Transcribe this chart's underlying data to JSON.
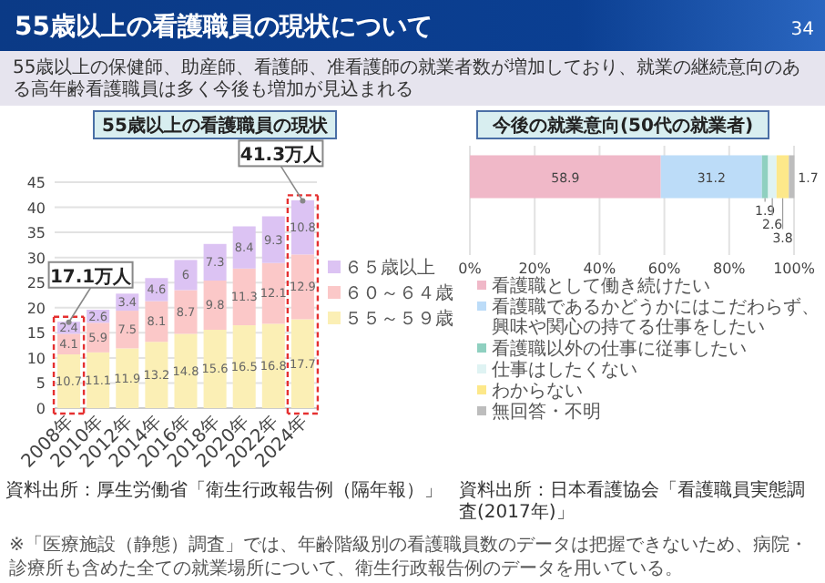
{
  "chart_data": [
    {
      "type": "other",
      "title": "55歳以上の看護職員の現状について",
      "subtitle": "55歳以上の保健師、助産師、看護師、准看護師の就業者数が増加しており、就業の継続意向のある高年齢看護職員は多く今後も増加が見込まれる",
      "annotations": [
        "34"
      ]
    },
    {
      "type": "bar",
      "title": "55歳以上の看護職員の現状",
      "categories": [
        "2008年",
        "2010年",
        "2012年",
        "2014年",
        "2016年",
        "2018年",
        "2020年",
        "2022年",
        "2024年"
      ],
      "stacked": true,
      "ylim": [
        0,
        45
      ],
      "yticks": [
        0,
        5,
        10,
        15,
        20,
        25,
        30,
        35,
        40,
        45
      ],
      "grid": "y",
      "legend": "right",
      "data_labels": true,
      "series": [
        {
          "name": "５５～５９歳",
          "color": "#fbefb5",
          "values": [
            10.7,
            11.1,
            11.9,
            13.2,
            14.8,
            15.6,
            16.5,
            16.8,
            17.7
          ]
        },
        {
          "name": "６０～６４歳",
          "color": "#fbc8c8",
          "values": [
            4.1,
            5.9,
            7.5,
            8.1,
            8.7,
            9.8,
            11.3,
            12.1,
            12.9
          ]
        },
        {
          "name": "６５歳以上",
          "color": "#dcc3f3",
          "values": [
            2.4,
            2.6,
            3.4,
            4.6,
            6.0,
            7.3,
            8.4,
            9.3,
            10.8
          ]
        }
      ],
      "annotations": [
        {
          "text": "17.1万人",
          "x": "2008年",
          "y": 17.1
        },
        {
          "text": "41.3万人",
          "x": "2024年",
          "y": 41.3
        },
        "資料出所：厚生労働省「衛生行政報告例（隔年報）」",
        "※「医療施設（静態）調査」では、年齢階級別の看護職員数のデータは把握できないため、病院・診療所も含めた全ての就業場所について、衛生行政報告例のデータを用いている。"
      ]
    },
    {
      "type": "bar",
      "title": "今後の就業意向(50代の就業者)",
      "orientation": "horizontal",
      "stacked": true,
      "categories": [
        null
      ],
      "xlim": [
        0,
        100
      ],
      "xticks": [
        {
          "value": 0,
          "label": "0%"
        },
        {
          "value": 20,
          "label": "20%"
        },
        {
          "value": 40,
          "label": "40%"
        },
        {
          "value": 60,
          "label": "60%"
        },
        {
          "value": 80,
          "label": "80%"
        },
        {
          "value": 100,
          "label": "100%"
        }
      ],
      "grid": "x",
      "legend": "bottom",
      "data_labels": true,
      "series": [
        {
          "name": "看護職として働き続けたい",
          "color": "#f0b8c8",
          "values": [
            58.9
          ]
        },
        {
          "name": "看護職であるかどうかにはこだわらず、興味や関心の持てる仕事をしたい",
          "color": "#bcdcf8",
          "values": [
            31.2
          ]
        },
        {
          "name": "看護職以外の仕事に従事したい",
          "color": "#8fd0c0",
          "values": [
            1.9
          ]
        },
        {
          "name": "仕事はしたくない",
          "color": "#dff3f3",
          "values": [
            2.6
          ]
        },
        {
          "name": "わからない",
          "color": "#fde88a",
          "values": [
            3.8
          ]
        },
        {
          "name": "無回答・不明",
          "color": "#bdbdbd",
          "values": [
            1.7
          ]
        }
      ],
      "annotations": [
        "資料出所：日本看護協会「看護職員実態調査(2017年)」"
      ]
    }
  ]
}
